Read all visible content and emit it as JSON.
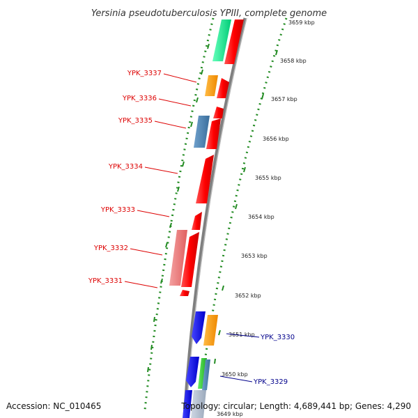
{
  "title": "Yersinia pseudotuberculosis YPIII, complete genome",
  "footer": {
    "accession": "Accession: NC_010465",
    "summary": "Topology: circular; Length: 4,689,441 bp; Genes: 4,290"
  },
  "colors": {
    "forward_cds": "#ff0000",
    "forward_cds_pale": "#f08080",
    "orange_cds": "#ff9900",
    "blue_cds": "#4682b4",
    "dark_blue_cds": "#0000ff",
    "green_cds": "#00ff99",
    "backbone": "#808080",
    "gc_dots": "#228b22",
    "left_labels": "#dd0000",
    "right_labels": "#00008b"
  },
  "ticks": [
    {
      "label": "3659 kbp"
    },
    {
      "label": "3658 kbp"
    },
    {
      "label": "3657 kbp"
    },
    {
      "label": "3656 kbp"
    },
    {
      "label": "3655 kbp"
    },
    {
      "label": "3654 kbp"
    },
    {
      "label": "3653 kbp"
    },
    {
      "label": "3652 kbp"
    },
    {
      "label": "3651 kbp"
    },
    {
      "label": "3650 kbp"
    },
    {
      "label": "3649 kbp"
    }
  ],
  "left_genes": [
    {
      "label": "YPK_3337"
    },
    {
      "label": "YPK_3336"
    },
    {
      "label": "YPK_3335"
    },
    {
      "label": "YPK_3334"
    },
    {
      "label": "YPK_3333"
    },
    {
      "label": "YPK_3332"
    },
    {
      "label": "YPK_3331"
    }
  ],
  "right_genes": [
    {
      "label": "YPK_3330"
    },
    {
      "label": "YPK_3329"
    }
  ]
}
